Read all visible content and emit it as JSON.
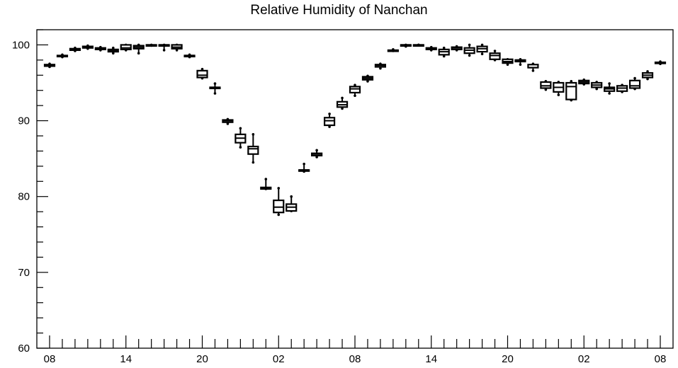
{
  "chart_data": {
    "type": "boxplot",
    "title": "Relative Humidity of Nanchan",
    "xlabel": "",
    "ylabel": "",
    "ylim": [
      60,
      102
    ],
    "yticks": [
      60,
      70,
      80,
      90,
      100
    ],
    "xticklabels": [
      "08",
      "14",
      "20",
      "02",
      "08",
      "14",
      "20",
      "02",
      "08"
    ],
    "xtick_hours": [
      0,
      6,
      12,
      18,
      24,
      30,
      36,
      42,
      48
    ],
    "grid": false,
    "boxes": [
      {
        "hour": 0,
        "min": 97.1,
        "q1": 97.2,
        "median": 97.3,
        "q3": 97.4,
        "max": 97.5
      },
      {
        "hour": 1,
        "min": 98.4,
        "q1": 98.5,
        "median": 98.5,
        "q3": 98.6,
        "max": 98.7
      },
      {
        "hour": 2,
        "min": 99.2,
        "q1": 99.3,
        "median": 99.4,
        "q3": 99.5,
        "max": 99.6
      },
      {
        "hour": 3,
        "min": 99.5,
        "q1": 99.6,
        "median": 99.7,
        "q3": 99.8,
        "max": 99.9
      },
      {
        "hour": 4,
        "min": 99.3,
        "q1": 99.4,
        "median": 99.5,
        "q3": 99.6,
        "max": 99.7
      },
      {
        "hour": 5,
        "min": 98.9,
        "q1": 99.1,
        "median": 99.2,
        "q3": 99.4,
        "max": 99.6
      },
      {
        "hour": 6,
        "min": 99.3,
        "q1": 99.4,
        "median": 99.6,
        "q3": 100.0,
        "max": 100.0
      },
      {
        "hour": 7,
        "min": 98.9,
        "q1": 99.5,
        "median": 99.7,
        "q3": 99.9,
        "max": 100.0
      },
      {
        "hour": 8,
        "min": 99.9,
        "q1": 99.9,
        "median": 100.0,
        "q3": 100.0,
        "max": 100.0
      },
      {
        "hour": 9,
        "min": 99.3,
        "q1": 100.0,
        "median": 100.0,
        "q3": 100.0,
        "max": 100.0
      },
      {
        "hour": 10,
        "min": 99.3,
        "q1": 99.5,
        "median": 99.7,
        "q3": 100.0,
        "max": 100.0
      },
      {
        "hour": 11,
        "min": 98.4,
        "q1": 98.5,
        "median": 98.6,
        "q3": 98.6,
        "max": 98.7
      },
      {
        "hour": 12,
        "min": 95.6,
        "q1": 95.7,
        "median": 96.0,
        "q3": 96.6,
        "max": 96.8
      },
      {
        "hour": 13,
        "min": 93.6,
        "q1": 94.4,
        "median": 94.4,
        "q3": 94.4,
        "max": 94.9
      },
      {
        "hour": 14,
        "min": 89.6,
        "q1": 89.8,
        "median": 90.0,
        "q3": 90.1,
        "max": 90.2
      },
      {
        "hour": 15,
        "min": 86.5,
        "q1": 87.1,
        "median": 87.7,
        "q3": 88.2,
        "max": 89.0
      },
      {
        "hour": 16,
        "min": 84.5,
        "q1": 85.6,
        "median": 86.3,
        "q3": 86.6,
        "max": 88.2
      },
      {
        "hour": 17,
        "min": 81.0,
        "q1": 81.0,
        "median": 81.1,
        "q3": 81.2,
        "max": 82.3
      },
      {
        "hour": 18,
        "min": 77.6,
        "q1": 77.9,
        "median": 78.6,
        "q3": 79.5,
        "max": 81.1
      },
      {
        "hour": 19,
        "min": 78.1,
        "q1": 78.1,
        "median": 78.6,
        "q3": 79.0,
        "max": 80.0
      },
      {
        "hour": 20,
        "min": 83.3,
        "q1": 83.4,
        "median": 83.5,
        "q3": 83.5,
        "max": 84.3
      },
      {
        "hour": 21,
        "min": 85.2,
        "q1": 85.4,
        "median": 85.6,
        "q3": 85.7,
        "max": 86.1
      },
      {
        "hour": 22,
        "min": 89.2,
        "q1": 89.4,
        "median": 90.0,
        "q3": 90.4,
        "max": 90.9
      },
      {
        "hour": 23,
        "min": 91.6,
        "q1": 91.8,
        "median": 92.1,
        "q3": 92.5,
        "max": 93.0
      },
      {
        "hour": 24,
        "min": 93.3,
        "q1": 93.7,
        "median": 94.2,
        "q3": 94.5,
        "max": 94.7
      },
      {
        "hour": 25,
        "min": 95.2,
        "q1": 95.4,
        "median": 95.6,
        "q3": 95.8,
        "max": 95.9
      },
      {
        "hour": 26,
        "min": 96.9,
        "q1": 97.1,
        "median": 97.3,
        "q3": 97.4,
        "max": 97.5
      },
      {
        "hour": 27,
        "min": 99.2,
        "q1": 99.3,
        "median": 99.3,
        "q3": 99.3,
        "max": 99.4
      },
      {
        "hour": 28,
        "min": 99.8,
        "q1": 99.9,
        "median": 100.0,
        "q3": 100.0,
        "max": 100.0
      },
      {
        "hour": 29,
        "min": 100.0,
        "q1": 100.0,
        "median": 100.0,
        "q3": 100.0,
        "max": 100.0
      },
      {
        "hour": 30,
        "min": 99.3,
        "q1": 99.4,
        "median": 99.5,
        "q3": 99.6,
        "max": 99.7
      },
      {
        "hour": 31,
        "min": 98.5,
        "q1": 98.7,
        "median": 99.1,
        "q3": 99.4,
        "max": 99.6
      },
      {
        "hour": 32,
        "min": 99.3,
        "q1": 99.4,
        "median": 99.6,
        "q3": 99.7,
        "max": 99.8
      },
      {
        "hour": 33,
        "min": 98.6,
        "q1": 98.9,
        "median": 99.3,
        "q3": 99.6,
        "max": 100.0
      },
      {
        "hour": 34,
        "min": 98.8,
        "q1": 99.1,
        "median": 99.5,
        "q3": 99.8,
        "max": 100.0
      },
      {
        "hour": 35,
        "min": 98.0,
        "q1": 98.1,
        "median": 98.6,
        "q3": 98.9,
        "max": 99.2
      },
      {
        "hour": 36,
        "min": 97.4,
        "q1": 97.6,
        "median": 97.8,
        "q3": 98.1,
        "max": 98.1
      },
      {
        "hour": 37,
        "min": 97.4,
        "q1": 97.8,
        "median": 98.0,
        "q3": 98.0,
        "max": 98.1
      },
      {
        "hour": 38,
        "min": 96.6,
        "q1": 97.0,
        "median": 97.0,
        "q3": 97.4,
        "max": 97.5
      },
      {
        "hour": 39,
        "min": 94.1,
        "q1": 94.3,
        "median": 94.6,
        "q3": 95.1,
        "max": 95.2
      },
      {
        "hour": 40,
        "min": 93.4,
        "q1": 93.8,
        "median": 94.4,
        "q3": 95.0,
        "max": 95.1
      },
      {
        "hour": 41,
        "min": 92.7,
        "q1": 92.8,
        "median": 94.5,
        "q3": 95.0,
        "max": 95.2
      },
      {
        "hour": 42,
        "min": 94.8,
        "q1": 94.9,
        "median": 95.1,
        "q3": 95.3,
        "max": 95.4
      },
      {
        "hour": 43,
        "min": 94.2,
        "q1": 94.4,
        "median": 94.7,
        "q3": 95.0,
        "max": 95.1
      },
      {
        "hour": 44,
        "min": 93.6,
        "q1": 93.9,
        "median": 94.2,
        "q3": 94.4,
        "max": 94.9
      },
      {
        "hour": 45,
        "min": 93.8,
        "q1": 93.9,
        "median": 94.3,
        "q3": 94.6,
        "max": 94.7
      },
      {
        "hour": 46,
        "min": 94.2,
        "q1": 94.3,
        "median": 94.6,
        "q3": 95.3,
        "max": 95.6
      },
      {
        "hour": 47,
        "min": 95.5,
        "q1": 95.7,
        "median": 96.0,
        "q3": 96.3,
        "max": 96.5
      },
      {
        "hour": 48,
        "min": 97.5,
        "q1": 97.6,
        "median": 97.7,
        "q3": 97.7,
        "max": 97.8
      }
    ]
  }
}
